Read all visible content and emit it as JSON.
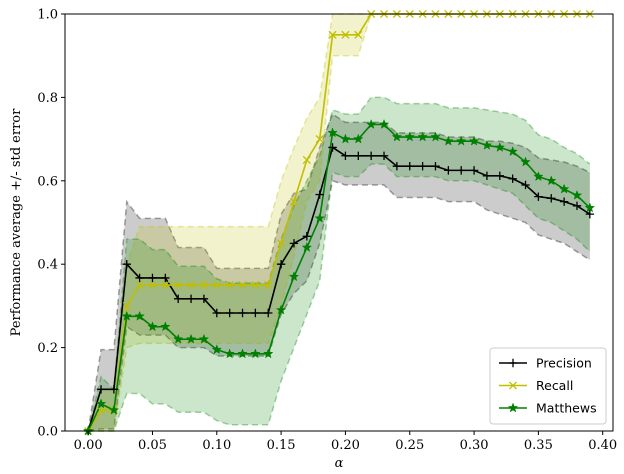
{
  "chart_data": {
    "type": "line",
    "xlabel": "α",
    "ylabel": "Performance average +/- std error",
    "xlim": [
      -0.018,
      0.408
    ],
    "ylim": [
      0.0,
      1.0
    ],
    "xticks": [
      0.0,
      0.05,
      0.1,
      0.15,
      0.2,
      0.25,
      0.3,
      0.35,
      0.4
    ],
    "xtick_labels": [
      "0.00",
      "0.05",
      "0.10",
      "0.15",
      "0.20",
      "0.25",
      "0.30",
      "0.35",
      "0.40"
    ],
    "yticks": [
      0.0,
      0.2,
      0.4,
      0.6,
      0.8,
      1.0
    ],
    "ytick_labels": [
      "0.0",
      "0.2",
      "0.4",
      "0.6",
      "0.8",
      "1.0"
    ],
    "grid": false,
    "legend": {
      "position": "lower-right"
    },
    "x": [
      0.0,
      0.01,
      0.02,
      0.03,
      0.04,
      0.05,
      0.06,
      0.07,
      0.08,
      0.09,
      0.1,
      0.11,
      0.12,
      0.13,
      0.14,
      0.15,
      0.16,
      0.17,
      0.18,
      0.19,
      0.2,
      0.21,
      0.22,
      0.23,
      0.24,
      0.25,
      0.26,
      0.27,
      0.28,
      0.29,
      0.3,
      0.31,
      0.32,
      0.33,
      0.34,
      0.35,
      0.36,
      0.37,
      0.38,
      0.39
    ],
    "series": [
      {
        "name": "Precision",
        "color": "#000000",
        "marker": "plus",
        "values": [
          0.0,
          0.1,
          0.1,
          0.4,
          0.367,
          0.367,
          0.367,
          0.317,
          0.317,
          0.317,
          0.283,
          0.283,
          0.283,
          0.283,
          0.283,
          0.4,
          0.45,
          0.467,
          0.567,
          0.68,
          0.66,
          0.66,
          0.66,
          0.66,
          0.635,
          0.635,
          0.635,
          0.635,
          0.625,
          0.625,
          0.625,
          0.612,
          0.612,
          0.605,
          0.59,
          0.562,
          0.558,
          0.55,
          0.54,
          0.52
        ],
        "lower": [
          0.0,
          0.005,
          0.005,
          0.25,
          0.23,
          0.23,
          0.23,
          0.2,
          0.2,
          0.2,
          0.18,
          0.18,
          0.18,
          0.18,
          0.18,
          0.28,
          0.33,
          0.36,
          0.45,
          0.6,
          0.59,
          0.59,
          0.59,
          0.59,
          0.56,
          0.56,
          0.56,
          0.56,
          0.55,
          0.55,
          0.55,
          0.53,
          0.52,
          0.51,
          0.5,
          0.47,
          0.46,
          0.45,
          0.43,
          0.41
        ],
        "upper": [
          0.0,
          0.195,
          0.195,
          0.55,
          0.51,
          0.51,
          0.51,
          0.44,
          0.44,
          0.44,
          0.39,
          0.39,
          0.39,
          0.39,
          0.39,
          0.52,
          0.57,
          0.58,
          0.68,
          0.76,
          0.74,
          0.74,
          0.74,
          0.74,
          0.715,
          0.715,
          0.715,
          0.715,
          0.705,
          0.705,
          0.705,
          0.695,
          0.695,
          0.69,
          0.68,
          0.655,
          0.65,
          0.645,
          0.635,
          0.62
        ]
      },
      {
        "name": "Recall",
        "color": "#bfbf00",
        "marker": "x",
        "values": [
          0.0,
          0.05,
          0.05,
          0.3,
          0.35,
          0.35,
          0.35,
          0.35,
          0.35,
          0.35,
          0.35,
          0.35,
          0.35,
          0.35,
          0.35,
          0.45,
          0.55,
          0.65,
          0.7,
          0.95,
          0.95,
          0.95,
          1.0,
          1.0,
          1.0,
          1.0,
          1.0,
          1.0,
          1.0,
          1.0,
          1.0,
          1.0,
          1.0,
          1.0,
          1.0,
          1.0,
          1.0,
          1.0,
          1.0,
          1.0
        ],
        "lower": [
          0.0,
          0.0,
          0.0,
          0.2,
          0.21,
          0.21,
          0.21,
          0.21,
          0.21,
          0.21,
          0.21,
          0.21,
          0.21,
          0.21,
          0.21,
          0.3,
          0.42,
          0.55,
          0.6,
          0.9,
          0.9,
          0.9,
          1.0,
          1.0,
          1.0,
          1.0,
          1.0,
          1.0,
          1.0,
          1.0,
          1.0,
          1.0,
          1.0,
          1.0,
          1.0,
          1.0,
          1.0,
          1.0,
          1.0,
          1.0
        ],
        "upper": [
          0.0,
          0.1,
          0.1,
          0.4,
          0.49,
          0.49,
          0.49,
          0.49,
          0.49,
          0.49,
          0.49,
          0.49,
          0.49,
          0.49,
          0.49,
          0.6,
          0.68,
          0.75,
          0.8,
          1.0,
          1.0,
          1.0,
          1.0,
          1.0,
          1.0,
          1.0,
          1.0,
          1.0,
          1.0,
          1.0,
          1.0,
          1.0,
          1.0,
          1.0,
          1.0,
          1.0,
          1.0,
          1.0,
          1.0,
          1.0
        ]
      },
      {
        "name": "Matthews",
        "color": "#008000",
        "marker": "star",
        "values": [
          0.0,
          0.065,
          0.05,
          0.275,
          0.275,
          0.25,
          0.25,
          0.22,
          0.22,
          0.22,
          0.195,
          0.185,
          0.185,
          0.185,
          0.185,
          0.29,
          0.37,
          0.44,
          0.51,
          0.715,
          0.7,
          0.7,
          0.735,
          0.735,
          0.705,
          0.705,
          0.705,
          0.705,
          0.695,
          0.695,
          0.695,
          0.685,
          0.68,
          0.67,
          0.645,
          0.61,
          0.6,
          0.58,
          0.565,
          0.535
        ],
        "lower": [
          0.0,
          0.0,
          0.0,
          0.09,
          0.09,
          0.065,
          0.065,
          0.045,
          0.045,
          0.045,
          0.025,
          0.015,
          0.015,
          0.015,
          0.015,
          0.12,
          0.2,
          0.28,
          0.36,
          0.62,
          0.61,
          0.61,
          0.64,
          0.64,
          0.61,
          0.61,
          0.61,
          0.61,
          0.6,
          0.6,
          0.6,
          0.59,
          0.58,
          0.57,
          0.54,
          0.51,
          0.5,
          0.48,
          0.46,
          0.43
        ],
        "upper": [
          0.0,
          0.13,
          0.1,
          0.46,
          0.46,
          0.435,
          0.435,
          0.395,
          0.395,
          0.395,
          0.365,
          0.355,
          0.355,
          0.355,
          0.355,
          0.46,
          0.54,
          0.6,
          0.66,
          0.77,
          0.76,
          0.76,
          0.8,
          0.8,
          0.785,
          0.785,
          0.785,
          0.785,
          0.775,
          0.775,
          0.775,
          0.77,
          0.765,
          0.76,
          0.745,
          0.71,
          0.7,
          0.68,
          0.665,
          0.64
        ]
      }
    ]
  }
}
